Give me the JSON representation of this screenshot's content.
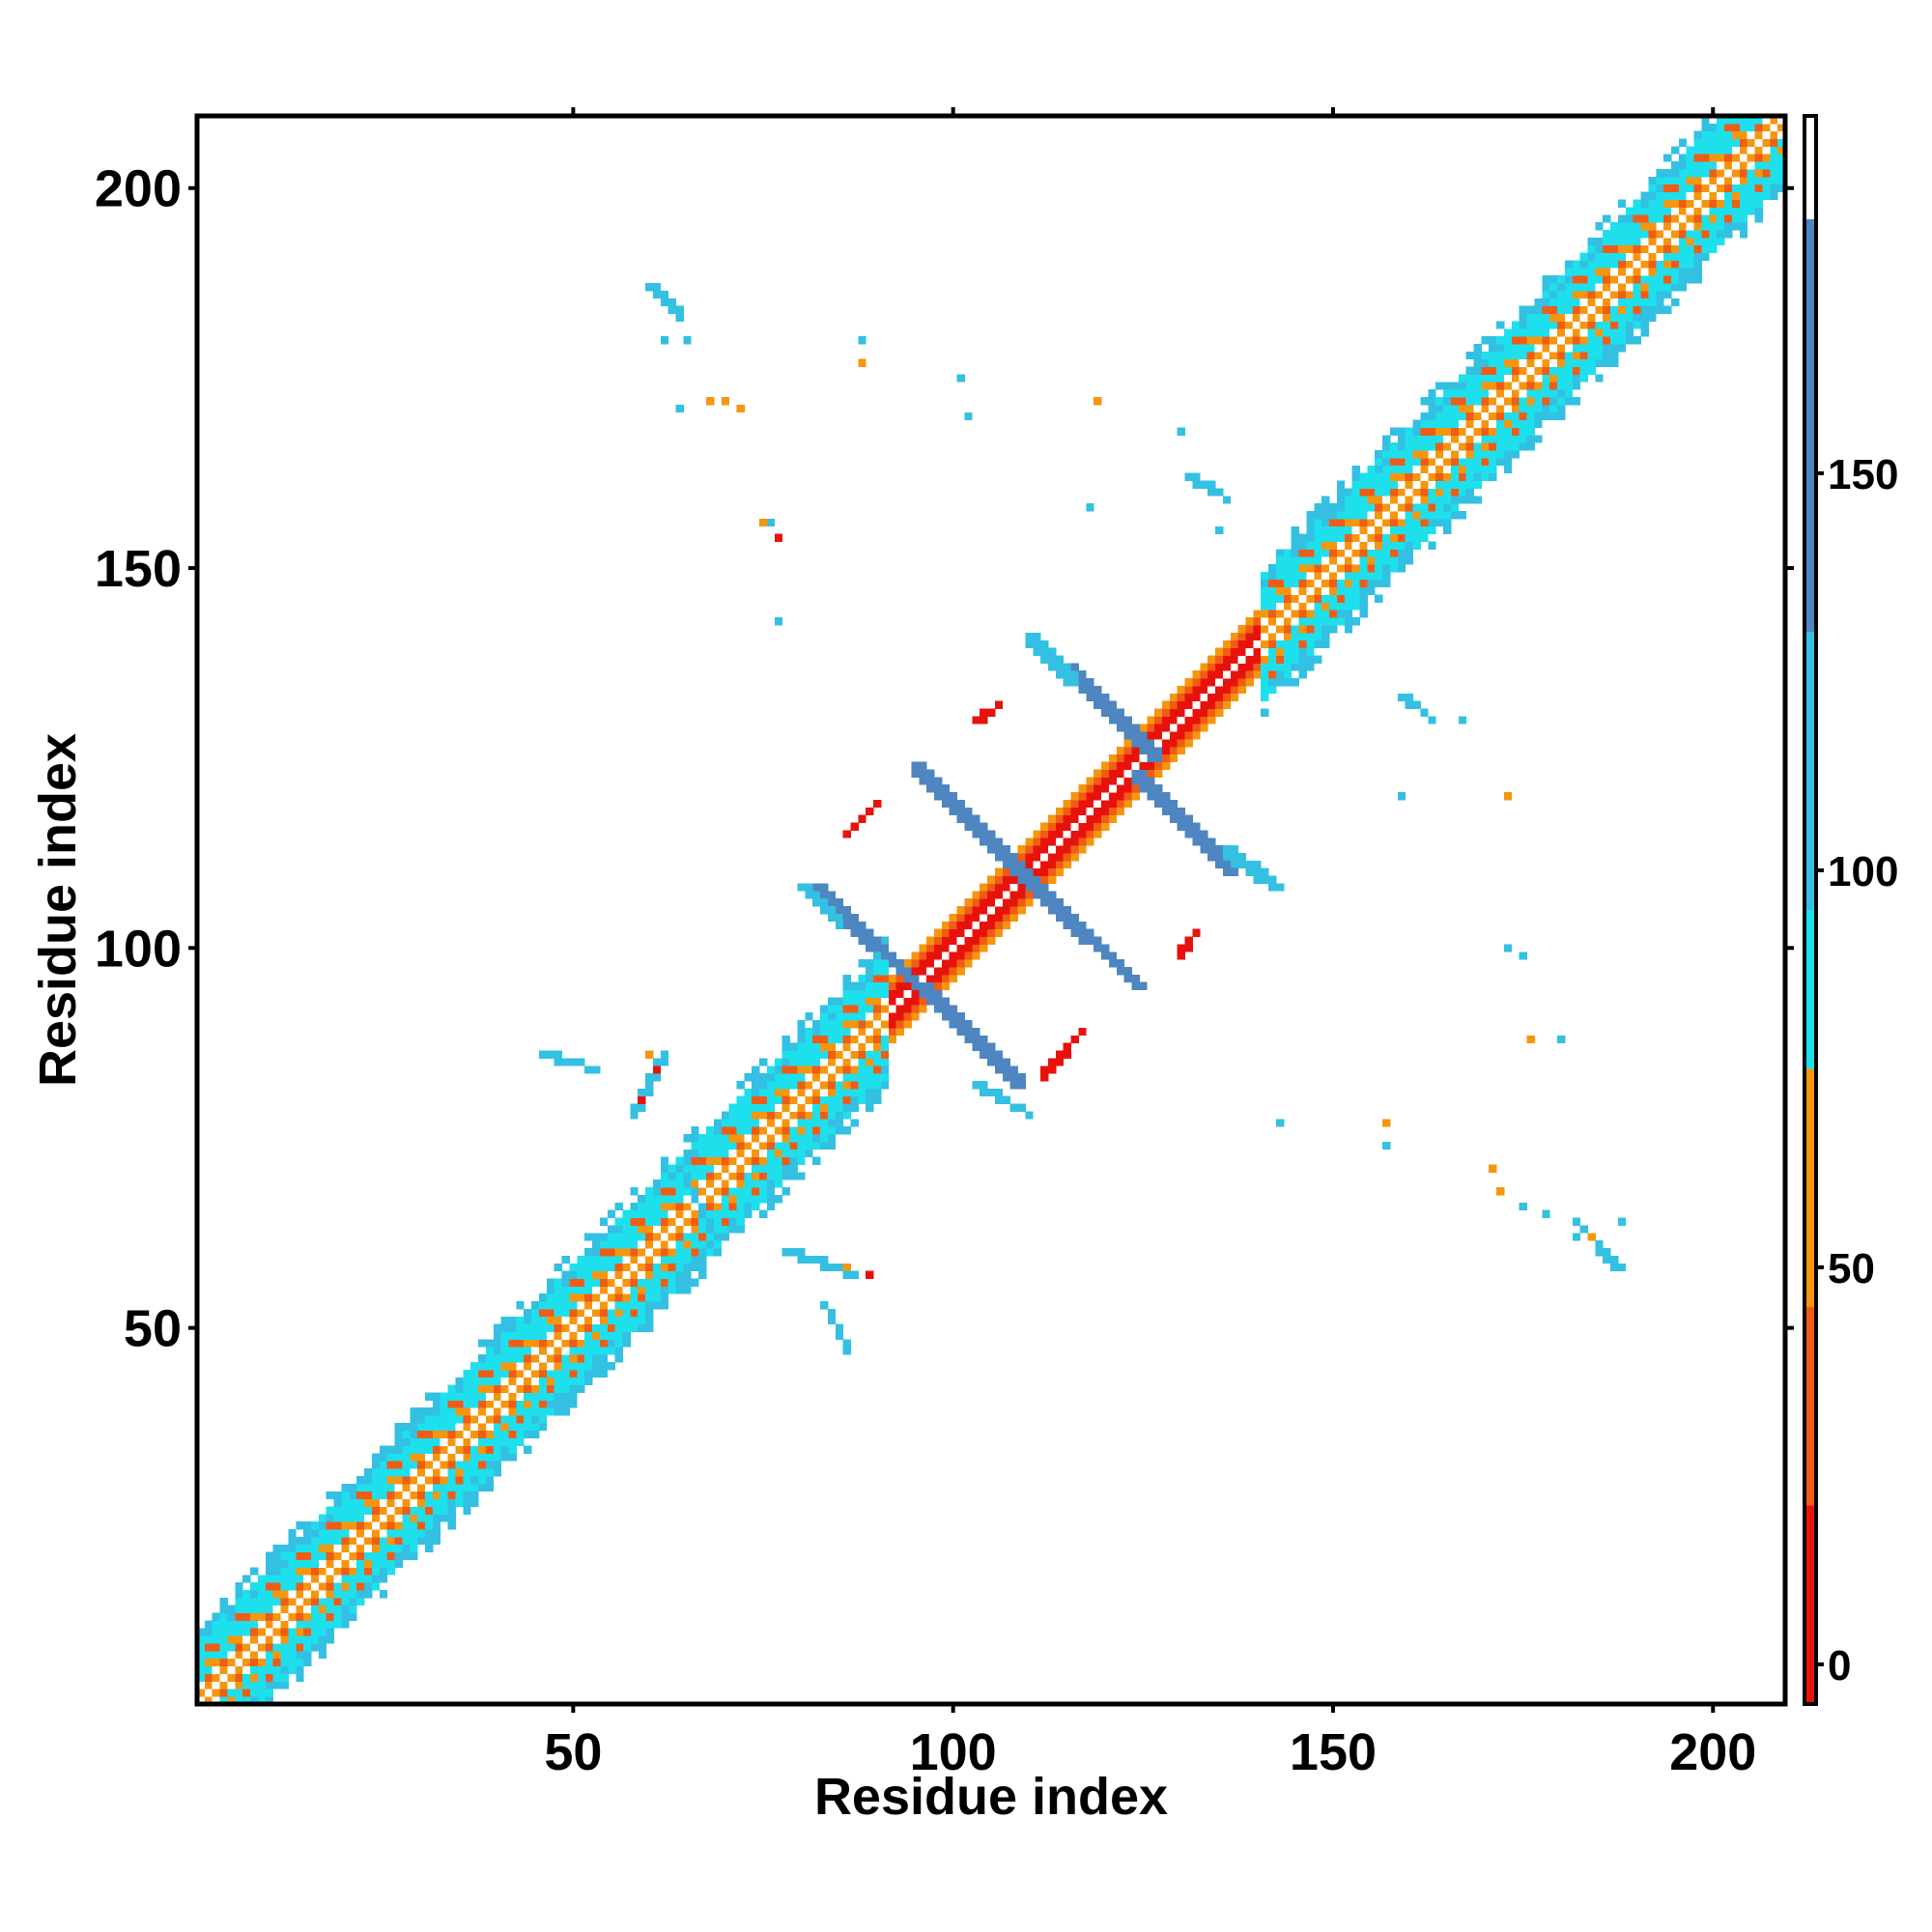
{
  "chart_data": {
    "type": "heatmap",
    "title": "",
    "xlabel": "Residue index",
    "ylabel": "Residue index",
    "xlim": [
      1,
      209
    ],
    "ylim": [
      1,
      209
    ],
    "x_ticks": [
      50,
      100,
      150,
      200
    ],
    "y_ticks": [
      50,
      100,
      150,
      200
    ],
    "grid": false,
    "legend": "colorbar-right",
    "colorbar": {
      "range": [
        -5,
        195
      ],
      "ticks": [
        0,
        50,
        100,
        150
      ],
      "segments": [
        {
          "from": -5,
          "to": 20,
          "color": "#e8120c"
        },
        {
          "from": 20,
          "to": 45,
          "color": "#f05c16"
        },
        {
          "from": 45,
          "to": 75,
          "color": "#f5960e"
        },
        {
          "from": 75,
          "to": 95,
          "color": "#1ee0ec"
        },
        {
          "from": 95,
          "to": 130,
          "color": "#33c0e2"
        },
        {
          "from": 130,
          "to": 182,
          "color": "#4d86c0"
        },
        {
          "from": 182,
          "to": 195,
          "color": "#ffffff"
        }
      ]
    },
    "diagonal_band": {
      "from": 1,
      "to": 209,
      "half_width": 10
    },
    "features": [
      {
        "kind": "stroke",
        "points": [
          [
            82,
            107
          ],
          [
            98,
            92
          ]
        ],
        "width": 2,
        "value": 150
      },
      {
        "kind": "stroke",
        "points": [
          [
            96,
            94
          ],
          [
            108,
            82
          ]
        ],
        "width": 2,
        "value": 150
      },
      {
        "kind": "stroke",
        "points": [
          [
            95,
            123
          ],
          [
            110,
            108
          ]
        ],
        "width": 2,
        "value": 150
      },
      {
        "kind": "stroke",
        "points": [
          [
            111,
            107
          ],
          [
            124,
            95
          ]
        ],
        "width": 2,
        "value": 150
      },
      {
        "kind": "stroke",
        "points": [
          [
            115,
            136
          ],
          [
            126,
            125
          ]
        ],
        "width": 2,
        "value": 150
      },
      {
        "kind": "stroke",
        "points": [
          [
            124,
            122
          ],
          [
            136,
            110
          ]
        ],
        "width": 2,
        "value": 150
      },
      {
        "kind": "stroke",
        "points": [
          [
            110,
            140
          ],
          [
            115,
            135
          ]
        ],
        "width": 2,
        "value": 110
      },
      {
        "kind": "stroke",
        "points": [
          [
            136,
            112
          ],
          [
            142,
            108
          ]
        ],
        "width": 2,
        "value": 110
      },
      {
        "kind": "stroke",
        "points": [
          [
            80,
            108
          ],
          [
            85,
            103
          ]
        ],
        "width": 1,
        "value": 110
      },
      {
        "kind": "stroke",
        "points": [
          [
            103,
            82
          ],
          [
            110,
            78
          ]
        ],
        "width": 1,
        "value": 110
      },
      {
        "kind": "stroke",
        "points": [
          [
            86,
            115
          ],
          [
            90,
            119
          ]
        ],
        "width": 1,
        "value": 5
      },
      {
        "kind": "stroke",
        "points": [
          [
            112,
            83
          ],
          [
            117,
            89
          ]
        ],
        "width": 1,
        "value": 5
      },
      {
        "kind": "stroke",
        "points": [
          [
            103,
            130
          ],
          [
            106,
            132
          ]
        ],
        "width": 1,
        "value": 5
      },
      {
        "kind": "stroke",
        "points": [
          [
            130,
            99
          ],
          [
            132,
            102
          ]
        ],
        "width": 1,
        "value": 5
      },
      {
        "kind": "stroke",
        "points": [
          [
            58,
            78
          ],
          [
            62,
            86
          ]
        ],
        "width": 1,
        "value": 110
      },
      {
        "kind": "stroke",
        "points": [
          [
            78,
            60
          ],
          [
            87,
            57
          ]
        ],
        "width": 1,
        "value": 110
      },
      {
        "kind": "stroke",
        "points": [
          [
            83,
            53
          ],
          [
            86,
            47
          ]
        ],
        "width": 1,
        "value": 100
      },
      {
        "kind": "stroke",
        "points": [
          [
            46,
            86
          ],
          [
            53,
            84
          ]
        ],
        "width": 1,
        "value": 100
      },
      {
        "kind": "stroke",
        "points": [
          [
            64,
            71
          ],
          [
            68,
            63
          ]
        ],
        "width": 1,
        "value": 100
      },
      {
        "kind": "stroke",
        "points": [
          [
            131,
            162
          ],
          [
            136,
            159
          ]
        ],
        "width": 1,
        "value": 110
      },
      {
        "kind": "stroke",
        "points": [
          [
            159,
            133
          ],
          [
            163,
            130
          ]
        ],
        "width": 1,
        "value": 110
      },
      {
        "kind": "stroke",
        "points": [
          [
            60,
            187
          ],
          [
            64,
            183
          ]
        ],
        "width": 1,
        "value": 100
      },
      {
        "kind": "stroke",
        "points": [
          [
            182,
            64
          ],
          [
            187,
            58
          ]
        ],
        "width": 1,
        "value": 100
      },
      {
        "kind": "dots",
        "value": 100,
        "points": [
          [
            62,
            180
          ],
          [
            65,
            180
          ],
          [
            64,
            171
          ],
          [
            76,
            156
          ],
          [
            77,
            143
          ],
          [
            88,
            180
          ],
          [
            101,
            175
          ],
          [
            102,
            170
          ],
          [
            118,
            158
          ],
          [
            130,
            168
          ],
          [
            135,
            155
          ],
          [
            143,
            77
          ],
          [
            157,
            74
          ],
          [
            167,
            130
          ],
          [
            173,
            100
          ],
          [
            175,
            99
          ],
          [
            175,
            66
          ],
          [
            178,
            65
          ],
          [
            180,
            88
          ],
          [
            182,
            62
          ],
          [
            188,
            64
          ],
          [
            188,
            58
          ],
          [
            159,
            120
          ]
        ]
      },
      {
        "kind": "dots",
        "value": 50,
        "points": [
          [
            68,
            172
          ],
          [
            70,
            172
          ],
          [
            72,
            171
          ],
          [
            88,
            177
          ],
          [
            119,
            172
          ],
          [
            173,
            120
          ],
          [
            176,
            88
          ],
          [
            157,
            77
          ],
          [
            171,
            71
          ],
          [
            172,
            68
          ],
          [
            184,
            62
          ],
          [
            75,
            156
          ],
          [
            60,
            86
          ],
          [
            86,
            58
          ]
        ]
      },
      {
        "kind": "dots",
        "value": 5,
        "points": [
          [
            61,
            84
          ],
          [
            59,
            80
          ],
          [
            77,
            154
          ],
          [
            89,
            57
          ]
        ]
      }
    ]
  }
}
